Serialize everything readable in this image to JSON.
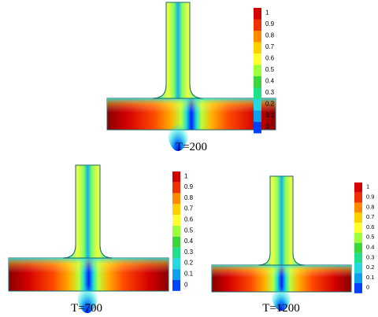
{
  "panels": [
    {
      "caption": "T=200"
    },
    {
      "caption": "T=700"
    },
    {
      "caption": "T=1200"
    }
  ],
  "colorbar": {
    "ticks": [
      "1",
      "0.9",
      "0.8",
      "0.7",
      "0.6",
      "0.5",
      "0.4",
      "0.3",
      "0.2",
      "0.1",
      "0"
    ],
    "colors": [
      "#d40000",
      "#f03000",
      "#ff8a00",
      "#ffd000",
      "#ffff30",
      "#9cff3c",
      "#3ad63a",
      "#20e08a",
      "#25d8e0",
      "#0ca0f0",
      "#0040ff"
    ]
  }
}
